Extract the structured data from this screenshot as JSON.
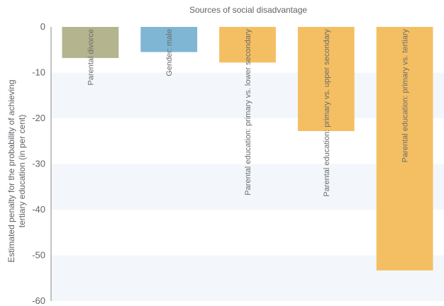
{
  "chart_data": {
    "type": "bar",
    "title": "Sources of social disadvantage",
    "xlabel": "",
    "ylabel": "Estimated penalty for the probability of achieving tertiary education (in per cent)",
    "ylim": [
      -60,
      0
    ],
    "yticks": [
      0,
      -10,
      -20,
      -30,
      -40,
      -50,
      -60
    ],
    "categories": [
      "Parental divorce",
      "Gender: male",
      "Parental education: primary vs. lower secondary",
      "Parental education: primary vs. upper secondary",
      "Parental education: primary vs. tertiary"
    ],
    "values": [
      -6.8,
      -5.5,
      -7.8,
      -22.8,
      -53.3
    ],
    "colors": [
      "#b4b48f",
      "#7eb6d3",
      "#f4bf63",
      "#f4bf63",
      "#f4bf63"
    ],
    "grid": "alternating horizontal bands",
    "legend": "none"
  }
}
